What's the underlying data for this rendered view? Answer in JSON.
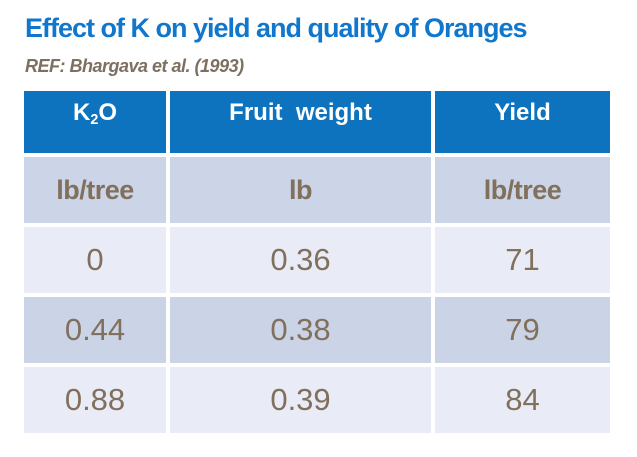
{
  "slide": {
    "title": "Effect of K on yield and quality of Oranges",
    "reference": "REF: Bhargava et al. (1993)"
  },
  "table": {
    "header": {
      "k2o": {
        "base": "K",
        "sub": "2",
        "rest": "O"
      },
      "fruit_weight": "Fruit  weight",
      "yield": "Yield"
    },
    "units": [
      "lb/tree",
      "lb",
      "lb/tree"
    ],
    "rows": [
      [
        "0",
        "0.36",
        "71"
      ],
      [
        "0.44",
        "0.38",
        "79"
      ],
      [
        "0.88",
        "0.39",
        "84"
      ]
    ]
  },
  "colors": {
    "title_blue": "#1077CC",
    "header_blue": "#0E73BE",
    "band_dark": "#CCD4E7",
    "band_light": "#E9ECF6",
    "text_brown": "#80705C",
    "header_text": "#FFFFFF"
  },
  "chart_data": {
    "type": "table",
    "title": "Effect of K on yield and quality of Oranges",
    "reference": "REF: Bhargava et al. (1993)",
    "columns": [
      "K2O (lb/tree)",
      "Fruit weight (lb)",
      "Yield (lb/tree)"
    ],
    "rows": [
      [
        0,
        0.36,
        71
      ],
      [
        0.44,
        0.38,
        79
      ],
      [
        0.88,
        0.39,
        84
      ]
    ]
  }
}
